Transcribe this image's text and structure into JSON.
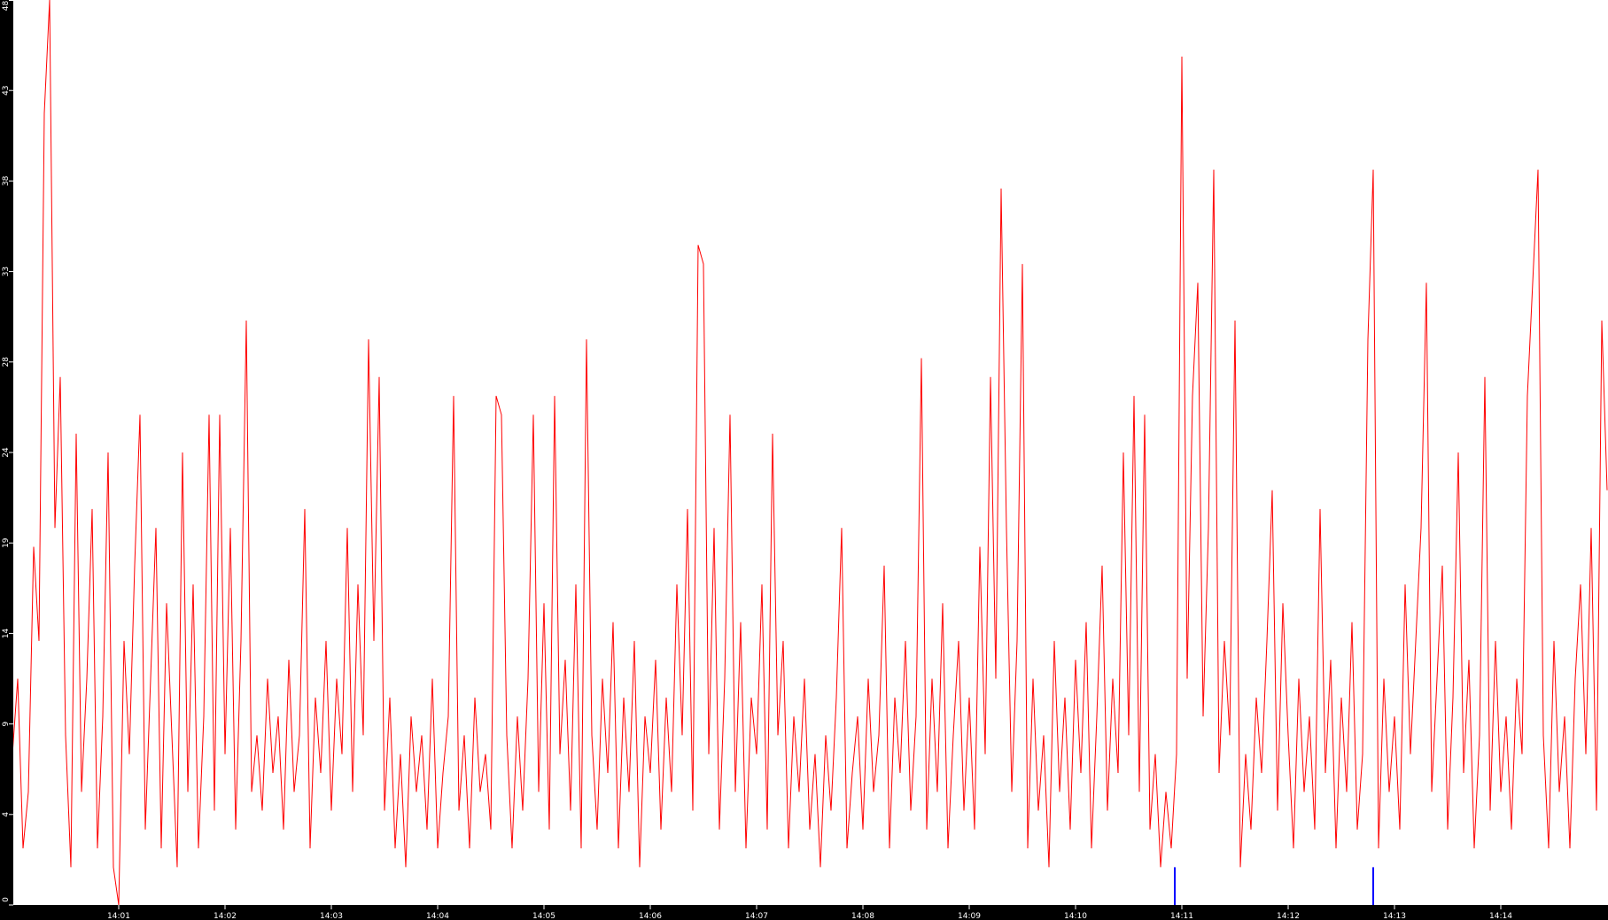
{
  "chart_data": {
    "type": "line",
    "title": "",
    "xlabel": "",
    "ylabel": "",
    "ylim": [
      0,
      48
    ],
    "y_ticks": [
      "0",
      "4",
      "9",
      "14",
      "19",
      "24",
      "28",
      "33",
      "38",
      "43",
      "48"
    ],
    "x_ticks": [
      "14:01",
      "14:02",
      "14:03",
      "14:04",
      "14:05",
      "14:06",
      "14:07",
      "14:08",
      "14:09",
      "14:10",
      "14:11",
      "14:12",
      "14:13",
      "14:14"
    ],
    "x_range": [
      "14:00:00",
      "14:15:00"
    ],
    "sample_interval_seconds": 3,
    "grid": false,
    "background": "#ffffff",
    "axis_color": "#000000",
    "series": [
      {
        "color": "#ff0000",
        "values": [
          8,
          12,
          3,
          6,
          19,
          14,
          42,
          48,
          20,
          28,
          9,
          2,
          25,
          6,
          12,
          21,
          3,
          10,
          24,
          2,
          0,
          14,
          8,
          18,
          26,
          4,
          12,
          20,
          3,
          16,
          9,
          2,
          24,
          6,
          17,
          3,
          10,
          26,
          5,
          26,
          8,
          20,
          4,
          14,
          31,
          6,
          9,
          5,
          12,
          7,
          10,
          4,
          13,
          6,
          9,
          21,
          3,
          11,
          7,
          14,
          5,
          12,
          8,
          20,
          6,
          17,
          9,
          30,
          14,
          28,
          5,
          11,
          3,
          8,
          2,
          10,
          6,
          9,
          4,
          12,
          3,
          7,
          10,
          27,
          5,
          9,
          3,
          11,
          6,
          8,
          4,
          27,
          26,
          9,
          3,
          10,
          5,
          12,
          26,
          6,
          16,
          4,
          27,
          8,
          13,
          5,
          17,
          3,
          30,
          9,
          4,
          12,
          7,
          15,
          3,
          11,
          6,
          14,
          2,
          10,
          7,
          13,
          4,
          11,
          6,
          17,
          9,
          21,
          5,
          35,
          34,
          8,
          20,
          4,
          12,
          26,
          6,
          15,
          3,
          11,
          8,
          17,
          4,
          25,
          9,
          14,
          3,
          10,
          6,
          12,
          4,
          8,
          2,
          9,
          5,
          11,
          20,
          3,
          7,
          10,
          4,
          12,
          6,
          9,
          18,
          3,
          11,
          7,
          14,
          5,
          10,
          29,
          4,
          12,
          6,
          16,
          3,
          9,
          14,
          5,
          11,
          4,
          19,
          8,
          28,
          12,
          38,
          20,
          6,
          14,
          34,
          3,
          12,
          5,
          9,
          2,
          14,
          6,
          11,
          4,
          13,
          7,
          15,
          3,
          10,
          18,
          5,
          12,
          7,
          24,
          9,
          27,
          6,
          26,
          4,
          8,
          2,
          6,
          3,
          8,
          45,
          12,
          27,
          33,
          10,
          20,
          39,
          7,
          14,
          9,
          31,
          2,
          8,
          4,
          11,
          7,
          14,
          22,
          5,
          16,
          9,
          3,
          12,
          6,
          10,
          4,
          21,
          7,
          13,
          3,
          11,
          6,
          15,
          4,
          8,
          30,
          39,
          3,
          12,
          6,
          10,
          4,
          17,
          8,
          14,
          20,
          33,
          6,
          12,
          18,
          4,
          11,
          24,
          7,
          13,
          3,
          9,
          28,
          5,
          14,
          6,
          10,
          4,
          12,
          8,
          27,
          33,
          39,
          9,
          3,
          14,
          6,
          10,
          3,
          12,
          17,
          8,
          20,
          5,
          31,
          22
        ]
      },
      {
        "color": "#0000ff",
        "points": [
          {
            "time": "14:10:56",
            "value": 2
          },
          {
            "time": "14:12:48",
            "value": 2
          }
        ]
      }
    ]
  }
}
